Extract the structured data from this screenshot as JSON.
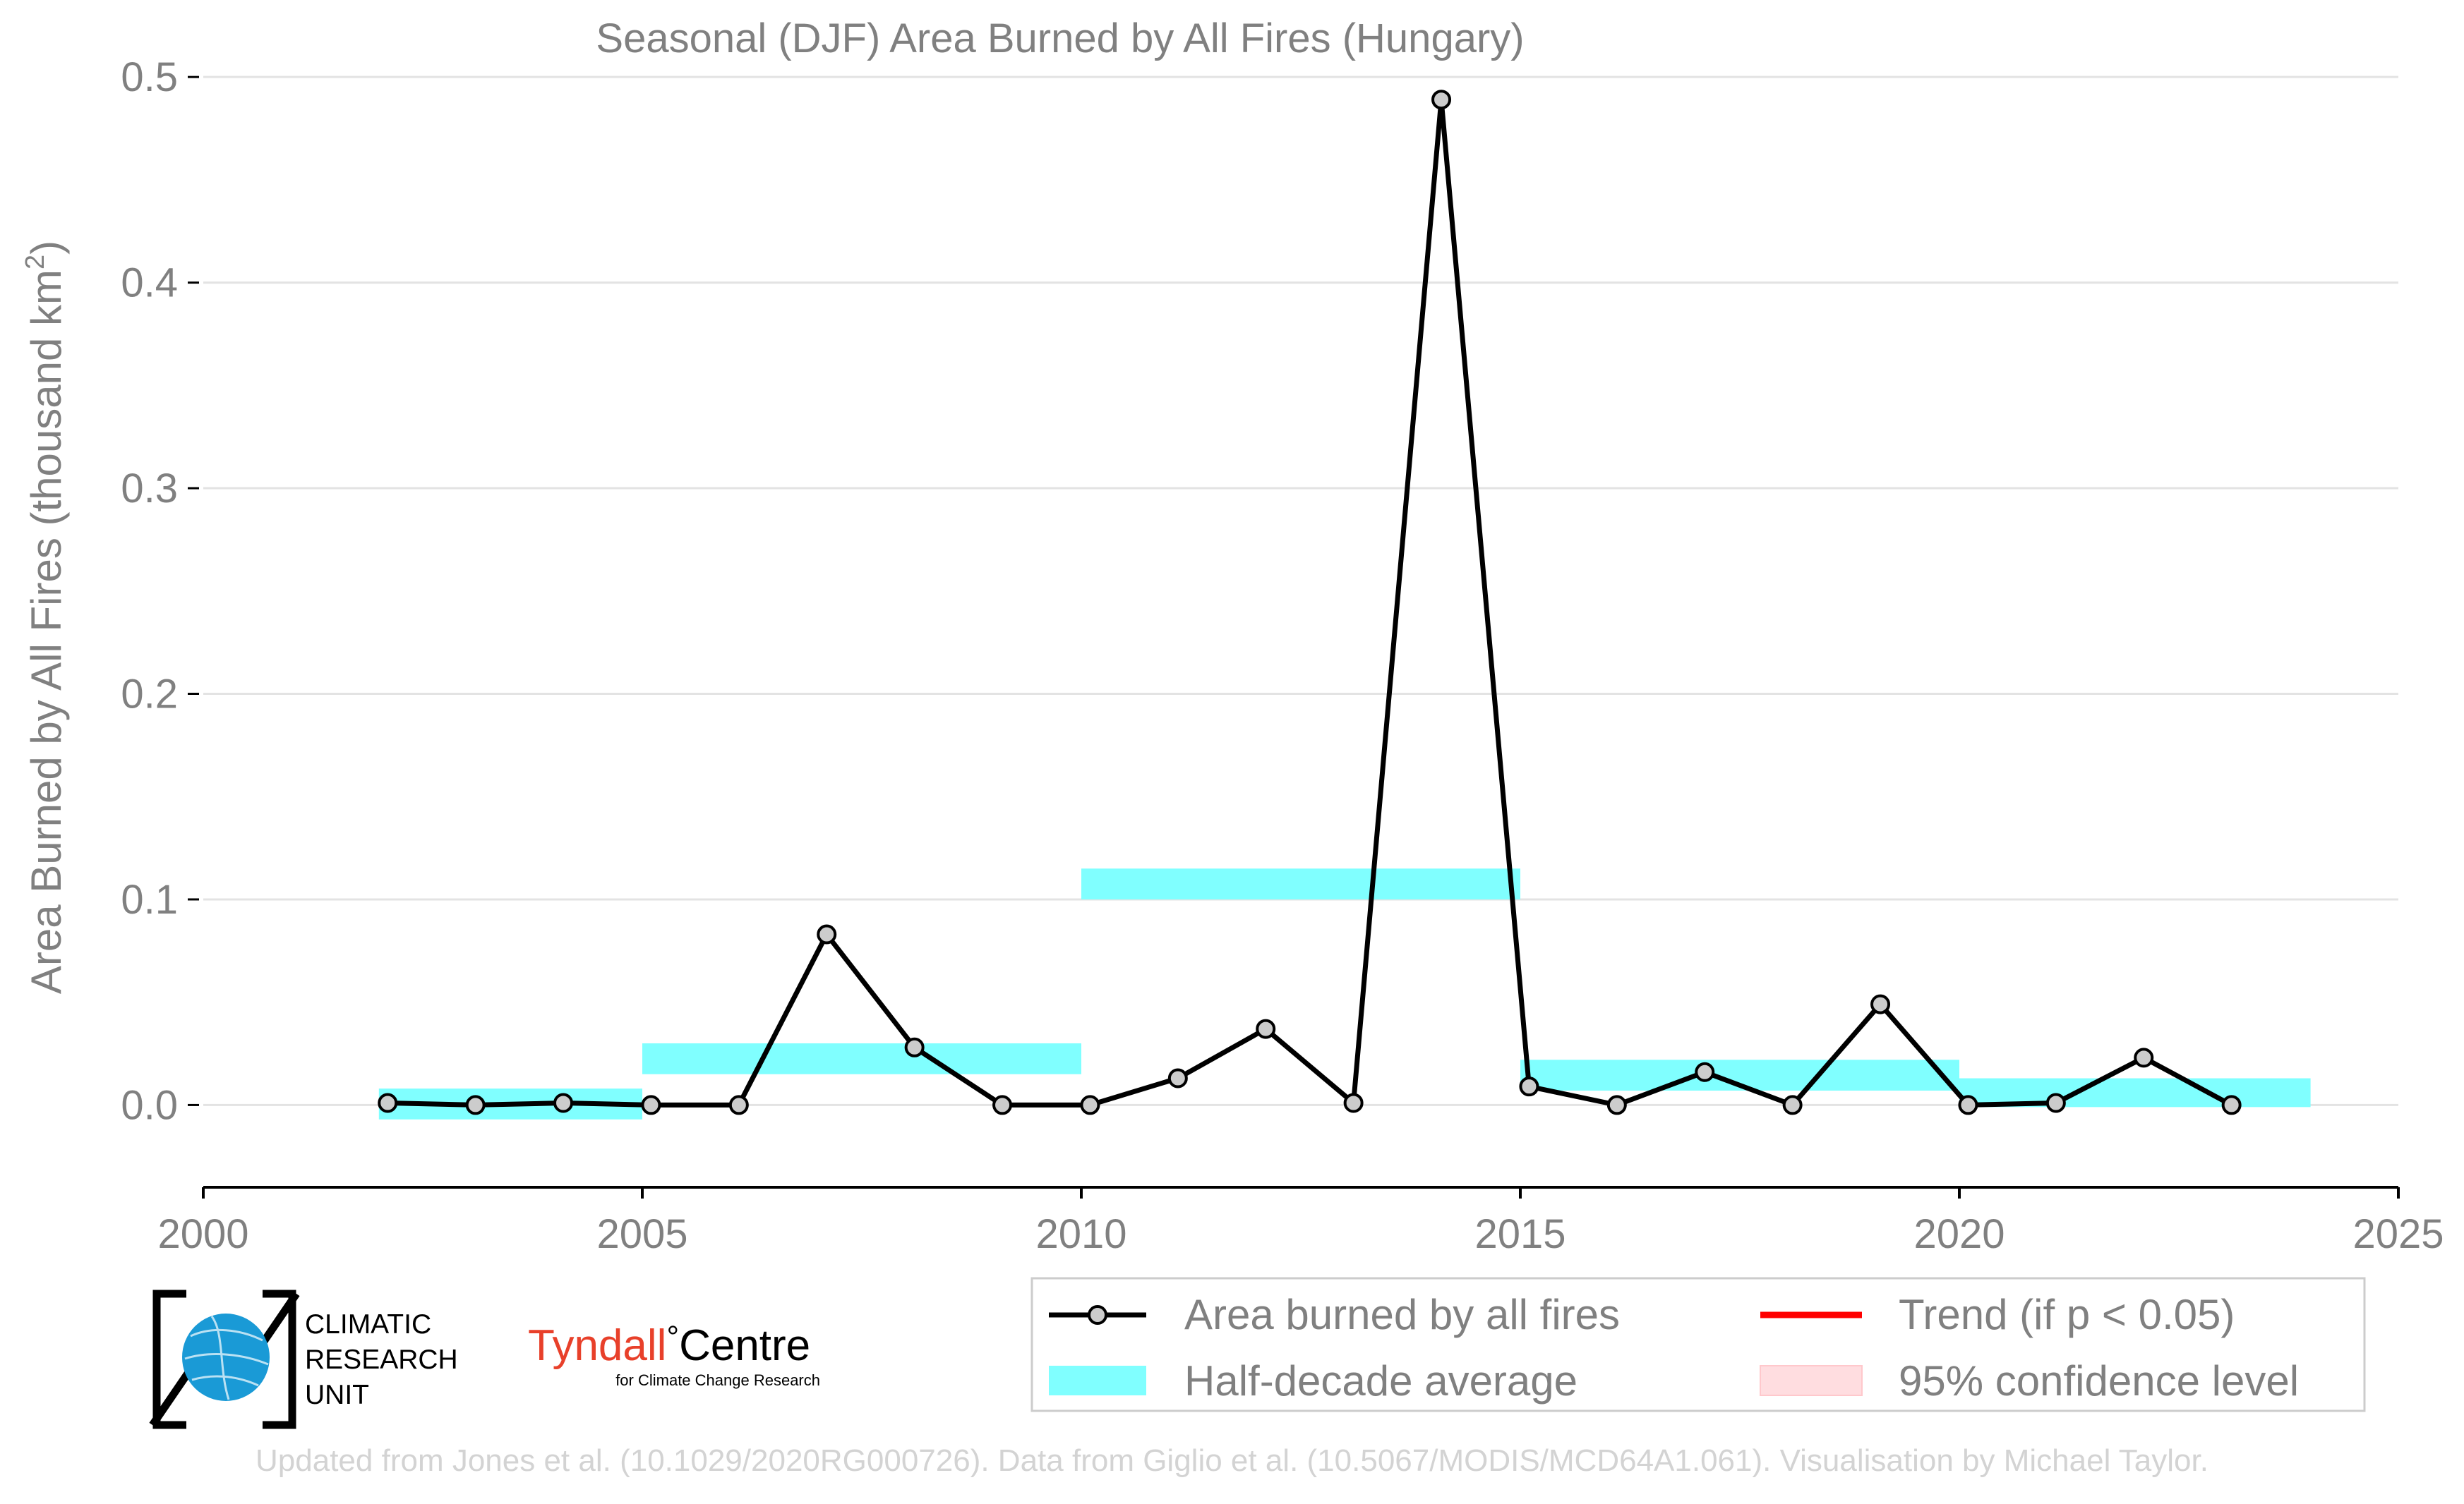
{
  "chart_data": {
    "type": "line",
    "title": "Seasonal (DJF) Area Burned by All Fires (Hungary)",
    "ylabel": "Area Burned by All Fires (thousand km",
    "ylabel_sup": "2",
    "ylabel_end": ")",
    "xlabel": "",
    "xlim": [
      2000,
      2025
    ],
    "ylim": [
      -0.04,
      0.51
    ],
    "x_ticks": [
      2000,
      2005,
      2010,
      2015,
      2020,
      2025
    ],
    "y_ticks": [
      0.0,
      0.1,
      0.2,
      0.3,
      0.4,
      0.5
    ],
    "y_tick_labels": [
      "0.0",
      "0.1",
      "0.2",
      "0.3",
      "0.4",
      "0.5"
    ],
    "grid": "horizontal",
    "series": [
      {
        "name": "Area burned by all fires",
        "color": "#000000",
        "marker_fill": "#cccccc",
        "x": [
          2002.1,
          2003.1,
          2004.1,
          2005.1,
          2006.1,
          2007.1,
          2008.1,
          2009.1,
          2010.1,
          2011.1,
          2012.1,
          2013.1,
          2014.1,
          2015.1,
          2016.1,
          2017.1,
          2018.1,
          2019.1,
          2020.1,
          2021.1,
          2022.1,
          2023.1
        ],
        "values": [
          0.001,
          0.0,
          0.001,
          0.0,
          0.0,
          0.083,
          0.028,
          0.0,
          0.0,
          0.013,
          0.037,
          0.001,
          0.489,
          0.009,
          0.0,
          0.016,
          0.0,
          0.049,
          0.0,
          0.001,
          0.023,
          0.0
        ]
      }
    ],
    "half_decade_average": {
      "name": "Half-decade average",
      "color": "#80ffff",
      "bands": [
        {
          "x_start": 2002,
          "x_end": 2005,
          "low": -0.007,
          "high": 0.008
        },
        {
          "x_start": 2005,
          "x_end": 2010,
          "low": 0.015,
          "high": 0.03
        },
        {
          "x_start": 2010,
          "x_end": 2015,
          "low": 0.1,
          "high": 0.115
        },
        {
          "x_start": 2015,
          "x_end": 2020,
          "low": 0.007,
          "high": 0.022
        },
        {
          "x_start": 2020,
          "x_end": 2024,
          "low": -0.001,
          "high": 0.013
        }
      ]
    },
    "legend": {
      "position": "bottom-right",
      "items": [
        {
          "label": "Area burned by all fires",
          "kind": "line-marker",
          "color": "#000000"
        },
        {
          "label": "Trend (if p < 0.05)",
          "kind": "line",
          "color": "#ff0000"
        },
        {
          "label": "Half-decade average",
          "kind": "band",
          "color": "#80ffff"
        },
        {
          "label": "95% confidence level",
          "kind": "band",
          "color": "#ffdde0"
        }
      ]
    }
  },
  "logos": {
    "cru_lines": [
      "CLIMATIC",
      "RESEARCH",
      "UNIT"
    ],
    "tyndall_main": "Tyndall",
    "tyndall_degree": "°",
    "tyndall_centre": "Centre",
    "tyndall_sub": "for Climate Change Research"
  },
  "footer": "Updated from Jones et al. (10.1029/2020RG000726). Data from Giglio et al. (10.5067/MODIS/MCD64A1.061). Visualisation by Michael Taylor.",
  "colors": {
    "text_gray": "#808080",
    "axis": "#000000",
    "grid": "#e3e3e3",
    "cru_blue": "#1a9ad6",
    "tyndall_red": "#e8402a"
  }
}
